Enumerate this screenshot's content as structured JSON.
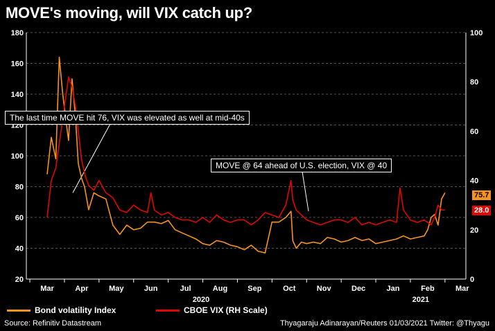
{
  "title": "MOVE's moving, will VIX catch up?",
  "chart_data": {
    "type": "line",
    "x_ticks": [
      "Mar",
      "Apr",
      "May",
      "Jun",
      "Jul",
      "Aug",
      "Sep",
      "Oct",
      "Nov",
      "Dec",
      "Jan",
      "Feb",
      "Mar"
    ],
    "year_labels": [
      "2020",
      "2021"
    ],
    "y_left": {
      "min": 20,
      "max": 180,
      "ticks": [
        20,
        40,
        60,
        80,
        100,
        120,
        140,
        160,
        180
      ]
    },
    "y_right": {
      "min": 0,
      "max": 100,
      "ticks": [
        0,
        20,
        40,
        60,
        80,
        100
      ]
    },
    "grid": true,
    "series": [
      {
        "name": "Bond volatility Index",
        "axis": "left",
        "color": "#f7941d",
        "x": [
          0,
          0.12,
          0.25,
          0.35,
          0.45,
          0.55,
          0.62,
          0.72,
          0.82,
          0.9,
          1.0,
          1.08,
          1.2,
          1.35,
          1.5,
          1.7,
          1.9,
          2.1,
          2.3,
          2.5,
          2.7,
          2.9,
          3.1,
          3.3,
          3.5,
          3.7,
          3.9,
          4.1,
          4.3,
          4.5,
          4.7,
          4.9,
          5.1,
          5.3,
          5.5,
          5.7,
          5.9,
          6.1,
          6.3,
          6.5,
          6.7,
          6.9,
          7.05,
          7.1,
          7.2,
          7.35,
          7.5,
          7.7,
          7.9,
          8.1,
          8.3,
          8.5,
          8.7,
          8.9,
          9.1,
          9.3,
          9.5,
          9.7,
          9.9,
          10.1,
          10.3,
          10.5,
          10.7,
          10.9,
          11.0,
          11.1,
          11.2,
          11.3,
          11.4,
          11.5
        ],
        "values": [
          88,
          112,
          98,
          164,
          140,
          122,
          110,
          150,
          125,
          95,
          85,
          80,
          65,
          76,
          74,
          72,
          55,
          49,
          55,
          52,
          53,
          57,
          57,
          56,
          58,
          52,
          50,
          48,
          46,
          43,
          42,
          45,
          44,
          42,
          41,
          39,
          42,
          38,
          37,
          57,
          57,
          60,
          64,
          45,
          40,
          44,
          43,
          44,
          43,
          47,
          46,
          44,
          45,
          47,
          45,
          46,
          43,
          44,
          45,
          46,
          48,
          46,
          47,
          48,
          52,
          60,
          62,
          55,
          72,
          76
        ]
      },
      {
        "name": "CBOE VIX (RH Scale)",
        "axis": "right",
        "color": "#e10600",
        "x": [
          0,
          0.12,
          0.25,
          0.35,
          0.45,
          0.55,
          0.62,
          0.72,
          0.82,
          0.9,
          1.0,
          1.1,
          1.2,
          1.35,
          1.5,
          1.7,
          1.9,
          2.1,
          2.3,
          2.5,
          2.7,
          2.9,
          3.0,
          3.1,
          3.3,
          3.5,
          3.7,
          3.9,
          4.1,
          4.3,
          4.5,
          4.7,
          4.9,
          5.1,
          5.3,
          5.5,
          5.7,
          5.9,
          6.1,
          6.3,
          6.5,
          6.7,
          6.9,
          7.05,
          7.1,
          7.2,
          7.35,
          7.5,
          7.7,
          7.9,
          8.1,
          8.3,
          8.5,
          8.7,
          8.9,
          9.1,
          9.3,
          9.5,
          9.7,
          9.9,
          10.1,
          10.2,
          10.3,
          10.5,
          10.7,
          10.9,
          11.1,
          11.2,
          11.3,
          11.4,
          11.5
        ],
        "values": [
          25,
          40,
          45,
          55,
          65,
          75,
          82,
          78,
          70,
          60,
          48,
          42,
          38,
          36,
          40,
          35,
          33,
          28,
          27,
          30,
          28,
          27,
          35,
          28,
          26,
          27,
          25,
          24,
          24,
          23,
          25,
          23,
          26,
          24,
          23,
          24,
          24,
          22,
          24,
          27,
          26,
          25,
          30,
          40,
          32,
          28,
          26,
          24,
          23,
          22,
          23,
          24,
          24,
          23,
          25,
          22,
          23,
          22,
          23,
          24,
          23,
          37,
          28,
          24,
          23,
          24,
          22,
          25,
          30,
          28,
          28
        ]
      }
    ],
    "annotations": [
      "The last time MOVE hit 76, VIX was elevated as well at mid-40s",
      "MOVE @ 64 ahead of U.S. election, VIX @ 40"
    ],
    "last_values": {
      "move": "75.7",
      "vix": "28.0"
    }
  },
  "legend": {
    "move_label": "Bond volatility Index",
    "vix_label": "CBOE VIX (RH Scale)"
  },
  "footer": {
    "source": "Source: Refinitiv Datastream",
    "credit": "Thyagaraju Adinarayan/Reuters 01/03/2021 Twitter: @Thyagu"
  },
  "colors": {
    "move": "#f7941d",
    "vix": "#e10600",
    "background": "#000000",
    "grid": "#555555"
  }
}
